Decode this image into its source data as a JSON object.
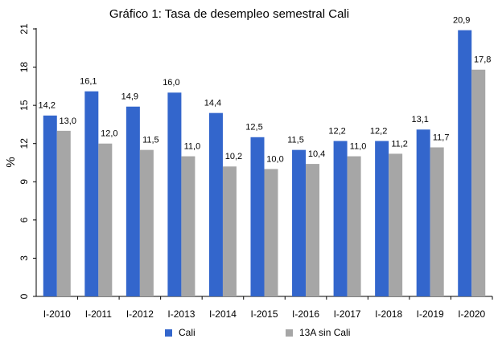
{
  "chart_data": {
    "type": "bar",
    "title": "Gráfico 1: Tasa de desempleo semestral Cali",
    "y_label": "%",
    "categories": [
      "I-2010",
      "I-2011",
      "I-2012",
      "I-2013",
      "I-2014",
      "I-2015",
      "I-2016",
      "I-2017",
      "I-2018",
      "I-2019",
      "I-2020"
    ],
    "series": [
      {
        "name": "Cali",
        "color": "#3366cc",
        "values": [
          14.2,
          16.1,
          14.9,
          16.0,
          14.4,
          12.5,
          11.5,
          12.2,
          12.2,
          13.1,
          20.9
        ],
        "value_labels": [
          "14,2",
          "16,1",
          "14,9",
          "16,0",
          "14,4",
          "12,5",
          "11,5",
          "12,2",
          "12,2",
          "13,1",
          "20,9"
        ]
      },
      {
        "name": "13A sin Cali",
        "color": "#a6a6a6",
        "values": [
          13.0,
          12.0,
          11.5,
          11.0,
          10.2,
          10.0,
          10.4,
          11.0,
          11.2,
          11.7,
          17.8
        ],
        "value_labels": [
          "13,0",
          "12,0",
          "11,5",
          "11,0",
          "10,2",
          "10,0",
          "10,4",
          "11,0",
          "11,2",
          "11,7",
          "17,8"
        ]
      }
    ],
    "ylim": [
      0,
      21
    ],
    "yticks": [
      0,
      3,
      6,
      9,
      12,
      15,
      18,
      21
    ],
    "legend": "bottom"
  }
}
